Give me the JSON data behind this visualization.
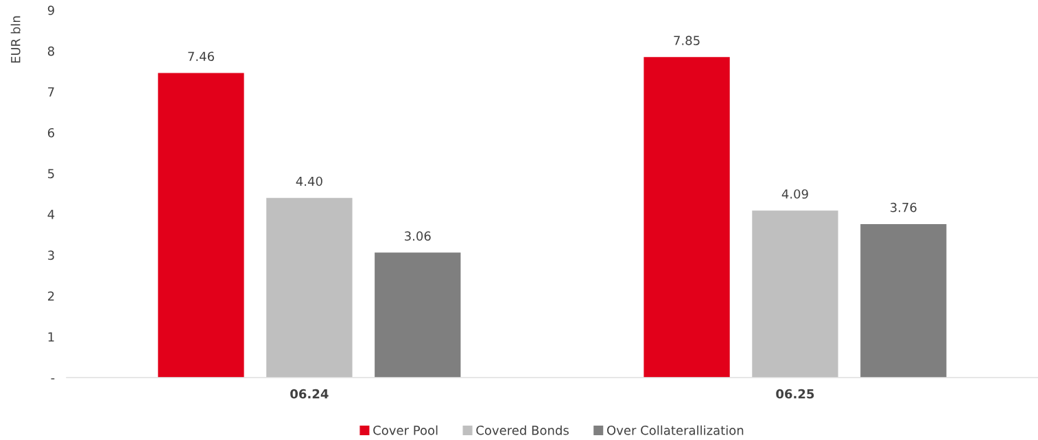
{
  "chart_data": {
    "type": "bar",
    "ylabel": "EUR bln",
    "categories": [
      "06.24",
      "06.25"
    ],
    "series": [
      {
        "name": "Cover Pool",
        "color": "#e2001a",
        "values": [
          7.46,
          7.85
        ]
      },
      {
        "name": "Covered Bonds",
        "color": "#bfbfbf",
        "values": [
          4.4,
          4.09
        ]
      },
      {
        "name": "Over Collaterallization",
        "color": "#7f7f7f",
        "values": [
          3.06,
          3.76
        ]
      }
    ],
    "value_labels": [
      [
        "7.46",
        "7.85"
      ],
      [
        "4.40",
        "4.09"
      ],
      [
        "3.06",
        "3.76"
      ]
    ],
    "ylim": [
      0,
      9
    ],
    "yticks": [
      {
        "value": 0,
        "label": "-"
      },
      1,
      2,
      3,
      4,
      5,
      6,
      7,
      8,
      9
    ],
    "grid": false,
    "legend": "bottom"
  }
}
